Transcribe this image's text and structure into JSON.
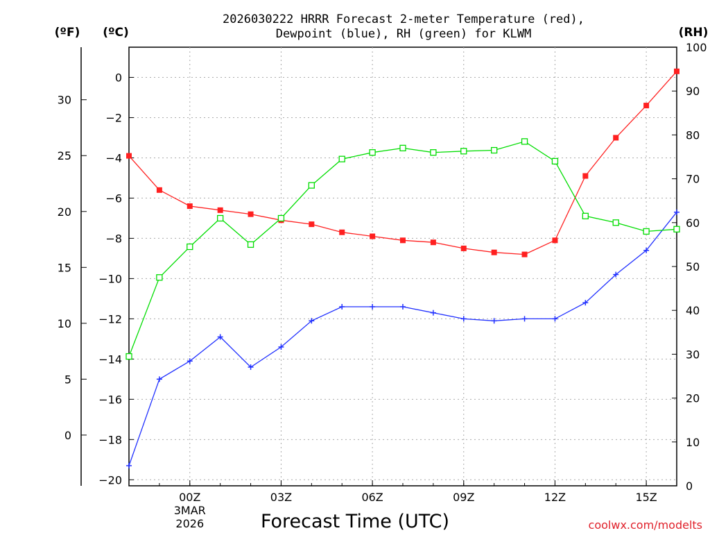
{
  "chart_data": {
    "type": "line",
    "title_line1": "2026030222 HRRR Forecast 2-meter Temperature (red),",
    "title_line2": "Dewpoint (blue), RH (green) for KLWM",
    "xlabel": "Forecast Time (UTC)",
    "watermark": "coolwx.com/modelts",
    "unit_labels": {
      "fahrenheit": "(ºF)",
      "celsius": "(ºC)",
      "rh": "(RH)"
    },
    "x": [
      0,
      1,
      2,
      3,
      4,
      5,
      6,
      7,
      8,
      9,
      10,
      11,
      12,
      13,
      14,
      15,
      16,
      17,
      18
    ],
    "xlim": [
      0,
      18
    ],
    "x_ticks": [
      {
        "x": 2,
        "label": "00Z",
        "sub1": "3MAR",
        "sub2": "2026"
      },
      {
        "x": 5,
        "label": "03Z"
      },
      {
        "x": 8,
        "label": "06Z"
      },
      {
        "x": 11,
        "label": "09Z"
      },
      {
        "x": 14,
        "label": "12Z"
      },
      {
        "x": 17,
        "label": "15Z"
      }
    ],
    "celsius_axis": {
      "ylim": [
        -20.3,
        1.5
      ],
      "ticks": [
        0,
        -2,
        -4,
        -6,
        -8,
        -10,
        -12,
        -14,
        -16,
        -18,
        -20
      ]
    },
    "fahrenheit_axis": {
      "ylim": [
        -4.54,
        34.7
      ],
      "ticks": [
        30,
        25,
        20,
        15,
        10,
        5,
        0
      ]
    },
    "rh_axis": {
      "ylim": [
        0,
        100
      ],
      "ticks": [
        100,
        90,
        80,
        70,
        60,
        50,
        40,
        30,
        20,
        10,
        0
      ]
    },
    "series": [
      {
        "name": "Temperature",
        "unit": "C",
        "color": "#ff2020",
        "values": [
          -3.9,
          -5.6,
          -6.4,
          -6.6,
          -6.8,
          -7.1,
          -7.3,
          -7.7,
          -7.9,
          -8.1,
          -8.2,
          -8.5,
          -8.7,
          -8.8,
          -8.1,
          -4.9,
          -3.0,
          -1.4,
          0.3
        ]
      },
      {
        "name": "Dewpoint",
        "unit": "C",
        "color": "#2030ff",
        "values": [
          -19.3,
          -15.0,
          -14.1,
          -12.9,
          -14.4,
          -13.4,
          -12.1,
          -11.4,
          -11.4,
          -11.4,
          -11.7,
          -12.0,
          -12.1,
          -12.0,
          -12.0,
          -11.2,
          -9.8,
          -8.6,
          -6.7
        ]
      },
      {
        "name": "RH",
        "unit": "%",
        "color": "#00dd00",
        "values": [
          29.5,
          47.5,
          54.5,
          61.0,
          55.0,
          61.0,
          68.5,
          74.5,
          76.0,
          77.0,
          76.0,
          76.3,
          76.5,
          78.5,
          74.0,
          61.5,
          60.0,
          58.0,
          58.5
        ]
      }
    ]
  }
}
